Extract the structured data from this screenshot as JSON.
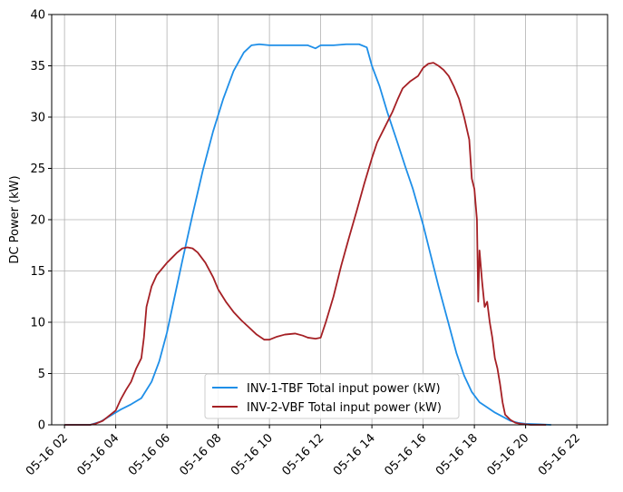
{
  "chart_data": {
    "type": "line",
    "title": "",
    "xlabel": "",
    "ylabel": "DC Power (kW)",
    "ylim": [
      0,
      40
    ],
    "xlim_hours": [
      1.5,
      23.2
    ],
    "grid": true,
    "legend_position": "lower-center",
    "x_ticks": [
      {
        "hour": 2,
        "label": "05-16 02"
      },
      {
        "hour": 4,
        "label": "05-16 04"
      },
      {
        "hour": 6,
        "label": "05-16 06"
      },
      {
        "hour": 8,
        "label": "05-16 08"
      },
      {
        "hour": 10,
        "label": "05-16 10"
      },
      {
        "hour": 12,
        "label": "05-16 12"
      },
      {
        "hour": 14,
        "label": "05-16 14"
      },
      {
        "hour": 16,
        "label": "05-16 16"
      },
      {
        "hour": 18,
        "label": "05-16 18"
      },
      {
        "hour": 20,
        "label": "05-16 20"
      },
      {
        "hour": 22,
        "label": "05-16 22"
      }
    ],
    "y_ticks": [
      0,
      5,
      10,
      15,
      20,
      25,
      30,
      35,
      40
    ],
    "series": [
      {
        "name": "INV-1-TBF Total input power (kW)",
        "color": "#1f8fe8",
        "points": [
          [
            2.0,
            0
          ],
          [
            3.0,
            0
          ],
          [
            3.4,
            0.3
          ],
          [
            3.8,
            0.9
          ],
          [
            4.2,
            1.5
          ],
          [
            4.6,
            2.0
          ],
          [
            5.0,
            2.6
          ],
          [
            5.4,
            4.2
          ],
          [
            5.7,
            6.2
          ],
          [
            6.0,
            9.0
          ],
          [
            6.3,
            12.5
          ],
          [
            6.6,
            16.0
          ],
          [
            7.0,
            20.5
          ],
          [
            7.4,
            24.8
          ],
          [
            7.8,
            28.6
          ],
          [
            8.2,
            31.8
          ],
          [
            8.6,
            34.5
          ],
          [
            9.0,
            36.3
          ],
          [
            9.3,
            37.0
          ],
          [
            9.6,
            37.1
          ],
          [
            10.0,
            37.0
          ],
          [
            10.5,
            37.0
          ],
          [
            11.0,
            37.0
          ],
          [
            11.5,
            37.0
          ],
          [
            11.8,
            36.7
          ],
          [
            12.0,
            37.0
          ],
          [
            12.5,
            37.0
          ],
          [
            13.0,
            37.1
          ],
          [
            13.5,
            37.1
          ],
          [
            13.8,
            36.8
          ],
          [
            14.0,
            35.0
          ],
          [
            14.3,
            33.0
          ],
          [
            14.6,
            30.5
          ],
          [
            15.0,
            27.5
          ],
          [
            15.3,
            25.2
          ],
          [
            15.6,
            23.0
          ],
          [
            16.0,
            19.5
          ],
          [
            16.3,
            16.5
          ],
          [
            16.6,
            13.5
          ],
          [
            17.0,
            9.8
          ],
          [
            17.3,
            7.0
          ],
          [
            17.6,
            4.8
          ],
          [
            17.9,
            3.2
          ],
          [
            18.2,
            2.2
          ],
          [
            18.5,
            1.7
          ],
          [
            18.8,
            1.2
          ],
          [
            19.1,
            0.8
          ],
          [
            19.4,
            0.4
          ],
          [
            19.7,
            0.2
          ],
          [
            20.0,
            0.1
          ],
          [
            20.5,
            0.05
          ],
          [
            21.0,
            0
          ]
        ]
      },
      {
        "name": "INV-2-VBF Total input power (kW)",
        "color": "#a52025",
        "points": [
          [
            2.0,
            0
          ],
          [
            3.0,
            0
          ],
          [
            3.2,
            0.1
          ],
          [
            3.5,
            0.4
          ],
          [
            3.8,
            1.0
          ],
          [
            4.0,
            1.4
          ],
          [
            4.2,
            2.5
          ],
          [
            4.4,
            3.4
          ],
          [
            4.6,
            4.2
          ],
          [
            4.8,
            5.5
          ],
          [
            5.0,
            6.5
          ],
          [
            5.1,
            8.5
          ],
          [
            5.2,
            11.5
          ],
          [
            5.4,
            13.5
          ],
          [
            5.6,
            14.6
          ],
          [
            5.8,
            15.2
          ],
          [
            6.0,
            15.8
          ],
          [
            6.2,
            16.3
          ],
          [
            6.4,
            16.8
          ],
          [
            6.6,
            17.2
          ],
          [
            6.8,
            17.3
          ],
          [
            7.0,
            17.2
          ],
          [
            7.2,
            16.8
          ],
          [
            7.5,
            15.8
          ],
          [
            7.8,
            14.4
          ],
          [
            8.0,
            13.2
          ],
          [
            8.3,
            12.0
          ],
          [
            8.6,
            11.0
          ],
          [
            8.9,
            10.2
          ],
          [
            9.2,
            9.5
          ],
          [
            9.5,
            8.8
          ],
          [
            9.8,
            8.3
          ],
          [
            10.0,
            8.3
          ],
          [
            10.3,
            8.6
          ],
          [
            10.6,
            8.8
          ],
          [
            11.0,
            8.9
          ],
          [
            11.3,
            8.7
          ],
          [
            11.5,
            8.5
          ],
          [
            11.8,
            8.4
          ],
          [
            12.0,
            8.5
          ],
          [
            12.2,
            10.0
          ],
          [
            12.5,
            12.5
          ],
          [
            12.8,
            15.5
          ],
          [
            13.1,
            18.2
          ],
          [
            13.4,
            20.8
          ],
          [
            13.7,
            23.5
          ],
          [
            14.0,
            26.0
          ],
          [
            14.2,
            27.5
          ],
          [
            14.5,
            29.0
          ],
          [
            14.8,
            30.5
          ],
          [
            15.0,
            31.7
          ],
          [
            15.2,
            32.8
          ],
          [
            15.5,
            33.5
          ],
          [
            15.8,
            34.0
          ],
          [
            16.0,
            34.8
          ],
          [
            16.2,
            35.2
          ],
          [
            16.4,
            35.3
          ],
          [
            16.6,
            35.0
          ],
          [
            16.8,
            34.6
          ],
          [
            17.0,
            34.0
          ],
          [
            17.2,
            33.0
          ],
          [
            17.4,
            31.8
          ],
          [
            17.6,
            30.0
          ],
          [
            17.8,
            27.8
          ],
          [
            17.9,
            24.0
          ],
          [
            18.0,
            23.0
          ],
          [
            18.1,
            20.0
          ],
          [
            18.15,
            12.0
          ],
          [
            18.2,
            17.0
          ],
          [
            18.3,
            14.0
          ],
          [
            18.4,
            11.5
          ],
          [
            18.5,
            12.0
          ],
          [
            18.6,
            10.0
          ],
          [
            18.7,
            8.5
          ],
          [
            18.8,
            6.5
          ],
          [
            18.9,
            5.5
          ],
          [
            19.0,
            4.0
          ],
          [
            19.1,
            2.2
          ],
          [
            19.2,
            1.0
          ],
          [
            19.4,
            0.5
          ],
          [
            19.6,
            0.2
          ],
          [
            19.8,
            0.1
          ],
          [
            20.2,
            0
          ],
          [
            20.8,
            0
          ]
        ]
      }
    ]
  }
}
